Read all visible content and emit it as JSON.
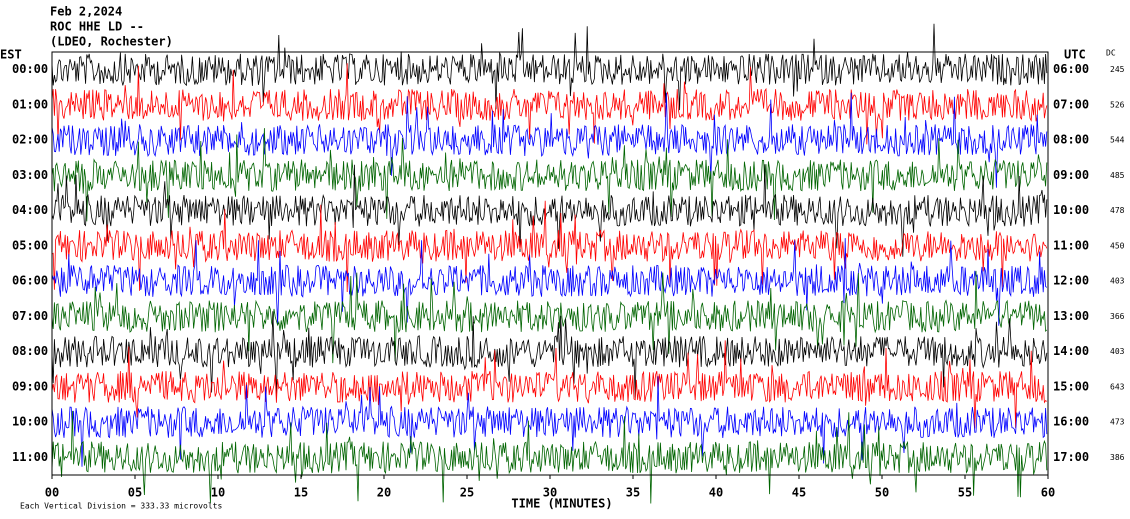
{
  "chart_data": {
    "type": "helicorder",
    "title_lines": [
      "Feb 2,2024",
      "ROC HHE LD --",
      "(LDEO, Rochester)"
    ],
    "left_axis_label": "EST",
    "right_axis_label": "UTC",
    "dc_label": "DC",
    "xlabel": "TIME (MINUTES)",
    "footnote": "Each Vertical Division = 333.33 microvolts",
    "xlim": [
      0,
      60
    ],
    "xticks": [
      {
        "value": 0,
        "label": "00"
      },
      {
        "value": 5,
        "label": "05"
      },
      10,
      15,
      20,
      25,
      30,
      35,
      40,
      45,
      50,
      55,
      60
    ],
    "rows": {
      "left": [
        "00:00",
        "01:00",
        "02:00",
        "03:00",
        "04:00",
        "05:00",
        "06:00",
        "07:00",
        "08:00",
        "09:00",
        "10:00",
        "11:00"
      ],
      "right": [
        "06:00",
        "07:00",
        "08:00",
        "09:00",
        "10:00",
        "11:00",
        "12:00",
        "13:00",
        "14:00",
        "15:00",
        "16:00",
        "17:00"
      ],
      "dc": [
        245,
        526,
        544,
        485,
        478,
        450,
        403,
        366,
        403,
        643,
        473,
        386
      ]
    },
    "colors": [
      "#000000",
      "#ff0000",
      "#0000ff",
      "#006400"
    ]
  }
}
